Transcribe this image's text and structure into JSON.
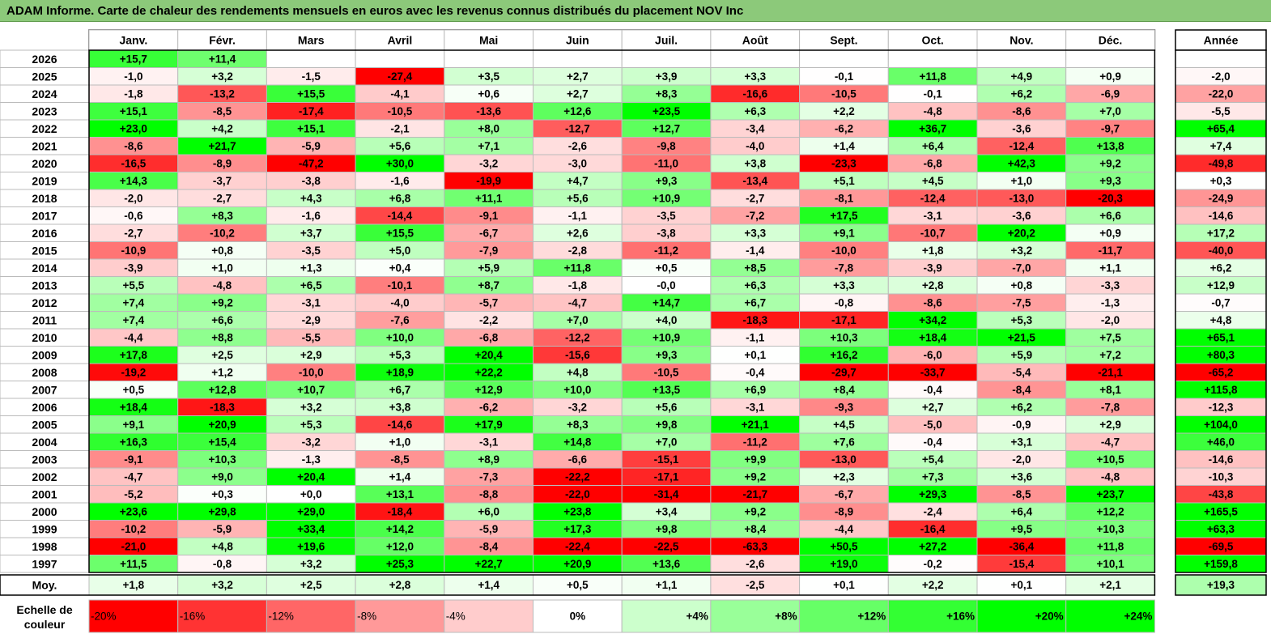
{
  "title": "ADAM Informe. Carte de chaleur des rendements mensuels en euros avec les revenus connus distribués du placement NOV Inc",
  "chart_data": {
    "type": "heatmap",
    "columns": [
      "Janv.",
      "Févr.",
      "Mars",
      "Avril",
      "Mai",
      "Juin",
      "Juil.",
      "Août",
      "Sept.",
      "Oct.",
      "Nov.",
      "Déc."
    ],
    "year_column": "Année",
    "rows": [
      {
        "label": "2026",
        "values": [
          15.7,
          11.4,
          null,
          null,
          null,
          null,
          null,
          null,
          null,
          null,
          null,
          null
        ],
        "year": null
      },
      {
        "label": "2025",
        "values": [
          -1.0,
          3.2,
          -1.5,
          -27.4,
          3.5,
          2.7,
          3.9,
          3.3,
          -0.1,
          11.8,
          4.9,
          0.9
        ],
        "year": -2.0
      },
      {
        "label": "2024",
        "values": [
          -1.8,
          -13.2,
          15.5,
          -4.1,
          0.6,
          2.7,
          8.3,
          -16.6,
          -10.5,
          -0.1,
          6.2,
          -6.9
        ],
        "year": -22.0
      },
      {
        "label": "2023",
        "values": [
          15.1,
          -8.5,
          -17.4,
          -10.5,
          -13.6,
          12.6,
          23.5,
          6.3,
          2.2,
          -4.8,
          -8.6,
          7.0
        ],
        "year": -5.5
      },
      {
        "label": "2022",
        "values": [
          23.0,
          4.2,
          15.1,
          -2.1,
          8.0,
          -12.7,
          12.7,
          -3.4,
          -6.2,
          36.7,
          -3.6,
          -9.7
        ],
        "year": 65.4
      },
      {
        "label": "2021",
        "values": [
          -8.6,
          21.7,
          -5.9,
          5.6,
          7.1,
          -2.6,
          -9.8,
          -4.0,
          1.4,
          6.4,
          -12.4,
          13.8
        ],
        "year": 7.4
      },
      {
        "label": "2020",
        "values": [
          -16.5,
          -8.9,
          -47.2,
          30.0,
          -3.2,
          -3.0,
          -11.0,
          3.8,
          -23.3,
          -6.8,
          42.3,
          9.2
        ],
        "year": -49.8
      },
      {
        "label": "2019",
        "values": [
          14.3,
          -3.7,
          -3.8,
          -1.6,
          -19.9,
          4.7,
          9.3,
          -13.4,
          5.1,
          4.5,
          1.0,
          9.3
        ],
        "year": 0.3
      },
      {
        "label": "2018",
        "values": [
          -2.0,
          -2.7,
          4.3,
          6.8,
          11.1,
          5.6,
          10.9,
          -2.7,
          -8.1,
          -12.4,
          -13.0,
          -20.3
        ],
        "year": -24.9
      },
      {
        "label": "2017",
        "values": [
          -0.6,
          8.3,
          -1.6,
          -14.4,
          -9.1,
          -1.1,
          -3.5,
          -7.2,
          17.5,
          -3.1,
          -3.6,
          6.6
        ],
        "year": -14.6
      },
      {
        "label": "2016",
        "values": [
          -2.7,
          -10.2,
          3.7,
          15.5,
          -6.7,
          2.6,
          -3.8,
          3.3,
          9.1,
          -10.7,
          20.2,
          0.9
        ],
        "year": 17.2
      },
      {
        "label": "2015",
        "values": [
          -10.9,
          0.8,
          -3.5,
          5.0,
          -7.9,
          -2.8,
          -11.2,
          -1.4,
          -10.0,
          1.8,
          3.2,
          -11.7
        ],
        "year": -40.0
      },
      {
        "label": "2014",
        "values": [
          -3.9,
          1.0,
          1.3,
          0.4,
          5.9,
          11.8,
          0.5,
          8.5,
          -7.8,
          -3.9,
          -7.0,
          1.1
        ],
        "year": 6.2
      },
      {
        "label": "2013",
        "values": [
          5.5,
          -4.8,
          6.5,
          -10.1,
          8.7,
          -1.8,
          -0.0,
          6.3,
          3.3,
          2.8,
          0.8,
          -3.3
        ],
        "year": 12.9
      },
      {
        "label": "2012",
        "values": [
          7.4,
          9.2,
          -3.1,
          -4.0,
          -5.7,
          -4.7,
          14.7,
          6.7,
          -0.8,
          -8.6,
          -7.5,
          -1.3
        ],
        "year": -0.7
      },
      {
        "label": "2011",
        "values": [
          7.4,
          6.6,
          -2.9,
          -7.6,
          -2.2,
          7.0,
          4.0,
          -18.3,
          -17.1,
          34.2,
          5.3,
          -2.0
        ],
        "year": 4.8
      },
      {
        "label": "2010",
        "values": [
          -4.4,
          8.8,
          -5.5,
          10.0,
          -6.8,
          -12.2,
          10.9,
          -1.1,
          10.3,
          18.4,
          21.5,
          7.5
        ],
        "year": 65.1
      },
      {
        "label": "2009",
        "values": [
          17.8,
          2.5,
          2.9,
          5.3,
          20.4,
          -15.6,
          9.3,
          0.1,
          16.2,
          -6.0,
          5.9,
          7.2
        ],
        "year": 80.3
      },
      {
        "label": "2008",
        "values": [
          -19.2,
          1.2,
          -10.0,
          18.9,
          22.2,
          4.8,
          -10.5,
          -0.4,
          -29.7,
          -33.7,
          -5.4,
          -21.1
        ],
        "year": -65.2
      },
      {
        "label": "2007",
        "values": [
          0.5,
          12.8,
          10.7,
          6.7,
          12.9,
          10.0,
          13.5,
          6.9,
          8.4,
          -0.4,
          -8.4,
          8.1
        ],
        "year": 115.8
      },
      {
        "label": "2006",
        "values": [
          18.4,
          -18.3,
          3.2,
          3.8,
          -6.2,
          -3.2,
          5.6,
          -3.1,
          -9.3,
          2.7,
          6.2,
          -7.8
        ],
        "year": -12.3
      },
      {
        "label": "2005",
        "values": [
          9.1,
          20.9,
          5.3,
          -14.6,
          17.9,
          8.3,
          9.8,
          21.1,
          4.5,
          -5.0,
          -0.9,
          2.9
        ],
        "year": 104.0
      },
      {
        "label": "2004",
        "values": [
          16.3,
          15.4,
          -3.2,
          1.0,
          -3.1,
          14.8,
          7.0,
          -11.2,
          7.6,
          -0.4,
          3.1,
          -4.7
        ],
        "year": 46.0
      },
      {
        "label": "2003",
        "values": [
          -9.1,
          10.3,
          -1.3,
          -8.5,
          8.9,
          -6.6,
          -15.1,
          9.9,
          -13.0,
          5.4,
          -2.0,
          10.5
        ],
        "year": -14.6
      },
      {
        "label": "2002",
        "values": [
          -4.7,
          9.0,
          20.4,
          1.4,
          -7.3,
          -22.2,
          -17.1,
          9.2,
          2.3,
          7.3,
          3.6,
          -4.8
        ],
        "year": -10.3
      },
      {
        "label": "2001",
        "values": [
          -5.2,
          0.3,
          0.0,
          13.1,
          -8.8,
          -22.0,
          -31.4,
          -21.7,
          -6.7,
          29.3,
          -8.5,
          23.7
        ],
        "year": -43.8
      },
      {
        "label": "2000",
        "values": [
          23.6,
          29.8,
          29.0,
          -18.4,
          6.0,
          23.8,
          3.4,
          9.2,
          -8.9,
          -2.4,
          6.4,
          12.2
        ],
        "year": 165.5
      },
      {
        "label": "1999",
        "values": [
          -10.2,
          -5.9,
          33.4,
          14.2,
          -5.9,
          17.3,
          9.8,
          8.4,
          -4.4,
          -16.4,
          9.5,
          10.3
        ],
        "year": 63.3
      },
      {
        "label": "1998",
        "values": [
          -21.0,
          4.8,
          19.6,
          12.0,
          -8.4,
          -22.4,
          -22.5,
          -63.3,
          50.5,
          27.2,
          -36.4,
          11.8
        ],
        "year": -69.5
      },
      {
        "label": "1997",
        "values": [
          11.5,
          -0.8,
          3.2,
          25.3,
          22.7,
          20.9,
          13.6,
          -2.6,
          19.0,
          -0.2,
          -15.4,
          10.1
        ],
        "year": 159.8
      }
    ],
    "average": {
      "label": "Moy.",
      "values": [
        1.8,
        3.2,
        2.5,
        2.8,
        1.4,
        0.5,
        1.1,
        -2.5,
        0.1,
        2.2,
        0.1,
        2.1
      ],
      "year": 19.3
    },
    "scale_label": "Echelle de couleur",
    "scale": [
      {
        "label": "-20%",
        "color": "#ff0000"
      },
      {
        "label": "-16%",
        "color": "#ff3333"
      },
      {
        "label": "-12%",
        "color": "#ff6666"
      },
      {
        "label": "-8%",
        "color": "#ff9999"
      },
      {
        "label": "-4%",
        "color": "#ffcccc"
      },
      {
        "label": "0%",
        "color": "#ffffff"
      },
      {
        "label": "+4%",
        "color": "#ccffcc"
      },
      {
        "label": "+8%",
        "color": "#99ff99"
      },
      {
        "label": "+12%",
        "color": "#66ff66"
      },
      {
        "label": "+16%",
        "color": "#33ff33"
      },
      {
        "label": "+20%",
        "color": "#00ff00"
      },
      {
        "label": "+24%",
        "color": "#00ff00"
      }
    ],
    "colors": {
      "negative_max": "#ff0000",
      "zero": "#ffffff",
      "positive_max": "#00ff00"
    }
  }
}
